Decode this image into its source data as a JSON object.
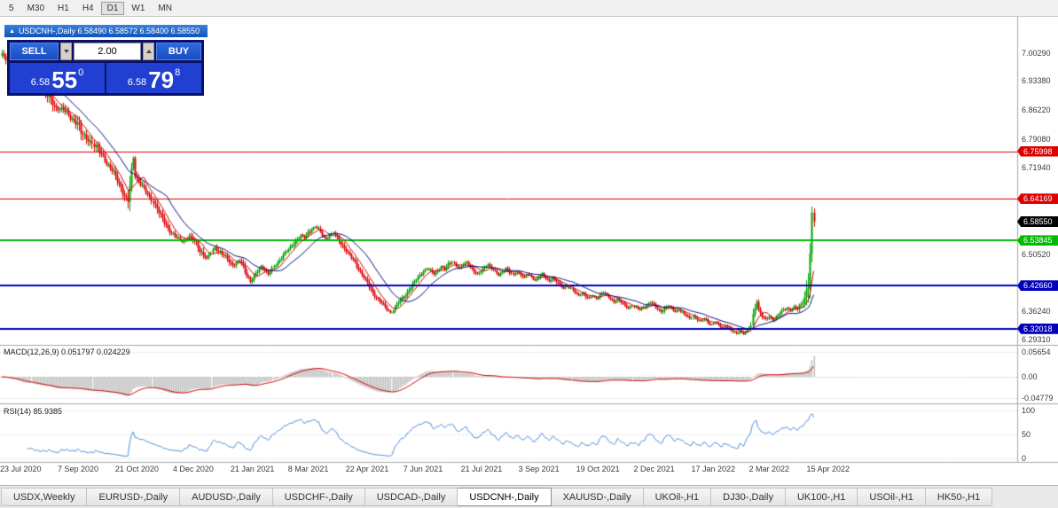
{
  "toolbar": {
    "timeframes": [
      {
        "label": "5",
        "active": false
      },
      {
        "label": "M30",
        "active": false
      },
      {
        "label": "H1",
        "active": false
      },
      {
        "label": "H4",
        "active": false
      },
      {
        "label": "D1",
        "active": true
      },
      {
        "label": "W1",
        "active": false
      },
      {
        "label": "MN",
        "active": false
      }
    ]
  },
  "chart_header": {
    "collapse_icon": "▲",
    "title": "USDCNH-,Daily 6.58490 6.58572 6.58400 6.58550"
  },
  "trade_panel": {
    "sell_label": "SELL",
    "buy_label": "BUY",
    "volume": "2.00",
    "sell_price": {
      "small": "6.58",
      "big": "55",
      "sup": "0"
    },
    "buy_price": {
      "small": "6.58",
      "big": "79",
      "sup": "8"
    }
  },
  "price_axis": {
    "scale_labels": [
      {
        "text": "7.00290",
        "value": 7.0029
      },
      {
        "text": "6.93380",
        "value": 6.9338
      },
      {
        "text": "6.86220",
        "value": 6.8622
      },
      {
        "text": "6.79080",
        "value": 6.7908
      },
      {
        "text": "6.71940",
        "value": 6.7194
      },
      {
        "text": "6.50520",
        "value": 6.5052
      },
      {
        "text": "6.36240",
        "value": 6.3624
      },
      {
        "text": "6.29310",
        "value": 6.2931
      }
    ],
    "markers": [
      {
        "text": "6.75998",
        "value": 6.75998,
        "color": "#dd0000",
        "line": true,
        "line_width": 1
      },
      {
        "text": "6.64169",
        "value": 6.64169,
        "color": "#dd0000",
        "line": true,
        "line_width": 1
      },
      {
        "text": "6.58550",
        "value": 6.5855,
        "color": "#000000",
        "line": false,
        "line_width": 0
      },
      {
        "text": "6.53845",
        "value": 6.53845,
        "color": "#00bb00",
        "line": true,
        "line_width": 2
      },
      {
        "text": "6.42660",
        "value": 6.4266,
        "color": "#0000bb",
        "line": true,
        "line_width": 2
      },
      {
        "text": "6.32018",
        "value": 6.32018,
        "color": "#0000bb",
        "line": true,
        "line_width": 2
      }
    ]
  },
  "macd_panel": {
    "label": "MACD(12,26,9) 0.051797 0.024229",
    "ticks": [
      {
        "text": "0.05654",
        "value": 0.05654
      },
      {
        "text": "0.00",
        "value": 0
      },
      {
        "text": "-0.04779",
        "value": -0.04779
      }
    ]
  },
  "rsi_panel": {
    "label": "RSI(14) 85.9385",
    "ticks": [
      {
        "text": "100",
        "value": 100
      },
      {
        "text": "50",
        "value": 50
      },
      {
        "text": "0",
        "value": 0
      }
    ]
  },
  "tabs": [
    {
      "label": "USDX,Weekly",
      "active": false
    },
    {
      "label": "EURUSD-,Daily",
      "active": false
    },
    {
      "label": "AUDUSD-,Daily",
      "active": false
    },
    {
      "label": "USDCHF-,Daily",
      "active": false
    },
    {
      "label": "USDCAD-,Daily",
      "active": false
    },
    {
      "label": "USDCNH-,Daily",
      "active": true
    },
    {
      "label": "XAUUSD-,Daily",
      "active": false
    },
    {
      "label": "UKOil-,H1",
      "active": false
    },
    {
      "label": "DJ30-,Daily",
      "active": false
    },
    {
      "label": "UK100-,H1",
      "active": false
    },
    {
      "label": "USOil-,H1",
      "active": false
    },
    {
      "label": "HK50-,H1",
      "active": false
    }
  ],
  "chart_data": {
    "type": "candlestick",
    "symbol": "USDCNH-",
    "timeframe": "Daily",
    "title": "USDCNH-,Daily",
    "current_ohlc": {
      "open": 6.5849,
      "high": 6.58572,
      "low": 6.584,
      "close": 6.5855
    },
    "bid": 6.5855,
    "ask": 6.58798,
    "bar_count": 452,
    "bars_per_label": 32,
    "last_close": 6.5855,
    "ylim": [
      6.2822,
      7.0732
    ],
    "macd_ylim": [
      -0.0606,
      0.0707
    ],
    "rsi_ylim": [
      -5.6,
      113
    ],
    "up_color": "#00a300",
    "down_color": "#de0000",
    "ma_fast": {
      "period": 8,
      "color": "#cc0000"
    },
    "ma_slow": {
      "period": 21,
      "color": "#00107a"
    },
    "macd": {
      "fast": 12,
      "slow": 26,
      "signal_period": 9,
      "histogram_color": "#c4c4c4",
      "signal_color": "#d40000",
      "value": 0.051797,
      "signal_value": 0.024229
    },
    "rsi": {
      "period": 14,
      "color": "#4a90d9",
      "value": 85.9385
    },
    "x_labels": [
      "23 Jul 2020",
      "7 Sep 2020",
      "21 Oct 2020",
      "4 Dec 2020",
      "21 Jan 2021",
      "8 Mar 2021",
      "22 Apr 2021",
      "7 Jun 2021",
      "21 Jul 2021",
      "3 Sep 2021",
      "19 Oct 2021",
      "2 Dec 2021",
      "17 Jan 2022",
      "2 Mar 2022",
      "15 Apr 2022"
    ],
    "price_path_anchors": [
      [
        0,
        6.997
      ],
      [
        4,
        6.985
      ],
      [
        8,
        6.968
      ],
      [
        12,
        6.945
      ],
      [
        14,
        6.952
      ],
      [
        18,
        6.928
      ],
      [
        22,
        6.915
      ],
      [
        26,
        6.892
      ],
      [
        30,
        6.868
      ],
      [
        34,
        6.862
      ],
      [
        38,
        6.845
      ],
      [
        42,
        6.828
      ],
      [
        44,
        6.805
      ],
      [
        48,
        6.79
      ],
      [
        52,
        6.768
      ],
      [
        56,
        6.748
      ],
      [
        58,
        6.73
      ],
      [
        62,
        6.705
      ],
      [
        64,
        6.69
      ],
      [
        66,
        6.672
      ],
      [
        68,
        6.648
      ],
      [
        70,
        6.635
      ],
      [
        72,
        6.71
      ],
      [
        73,
        6.745
      ],
      [
        74,
        6.7
      ],
      [
        76,
        6.685
      ],
      [
        80,
        6.66
      ],
      [
        84,
        6.635
      ],
      [
        86,
        6.618
      ],
      [
        88,
        6.6
      ],
      [
        90,
        6.585
      ],
      [
        92,
        6.57
      ],
      [
        94,
        6.558
      ],
      [
        96,
        6.548
      ],
      [
        100,
        6.537
      ],
      [
        104,
        6.549
      ],
      [
        108,
        6.532
      ],
      [
        110,
        6.515
      ],
      [
        112,
        6.503
      ],
      [
        114,
        6.492
      ],
      [
        116,
        6.51
      ],
      [
        118,
        6.522
      ],
      [
        120,
        6.512
      ],
      [
        124,
        6.498
      ],
      [
        128,
        6.478
      ],
      [
        132,
        6.488
      ],
      [
        134,
        6.472
      ],
      [
        136,
        6.455
      ],
      [
        138,
        6.437
      ],
      [
        140,
        6.448
      ],
      [
        142,
        6.462
      ],
      [
        144,
        6.475
      ],
      [
        146,
        6.468
      ],
      [
        148,
        6.455
      ],
      [
        150,
        6.468
      ],
      [
        152,
        6.48
      ],
      [
        154,
        6.49
      ],
      [
        156,
        6.503
      ],
      [
        158,
        6.512
      ],
      [
        160,
        6.522
      ],
      [
        162,
        6.532
      ],
      [
        164,
        6.543
      ],
      [
        166,
        6.552
      ],
      [
        168,
        6.545
      ],
      [
        170,
        6.558
      ],
      [
        172,
        6.568
      ],
      [
        174,
        6.573
      ],
      [
        176,
        6.565
      ],
      [
        178,
        6.552
      ],
      [
        180,
        6.543
      ],
      [
        182,
        6.552
      ],
      [
        184,
        6.558
      ],
      [
        186,
        6.545
      ],
      [
        188,
        6.532
      ],
      [
        190,
        6.52
      ],
      [
        192,
        6.508
      ],
      [
        194,
        6.495
      ],
      [
        196,
        6.482
      ],
      [
        198,
        6.468
      ],
      [
        200,
        6.455
      ],
      [
        202,
        6.44
      ],
      [
        204,
        6.425
      ],
      [
        206,
        6.41
      ],
      [
        208,
        6.398
      ],
      [
        210,
        6.388
      ],
      [
        212,
        6.378
      ],
      [
        214,
        6.368
      ],
      [
        216,
        6.36
      ],
      [
        218,
        6.372
      ],
      [
        220,
        6.385
      ],
      [
        222,
        6.395
      ],
      [
        224,
        6.405
      ],
      [
        226,
        6.418
      ],
      [
        228,
        6.43
      ],
      [
        230,
        6.442
      ],
      [
        232,
        6.452
      ],
      [
        234,
        6.462
      ],
      [
        236,
        6.47
      ],
      [
        238,
        6.463
      ],
      [
        240,
        6.455
      ],
      [
        242,
        6.465
      ],
      [
        244,
        6.475
      ],
      [
        246,
        6.468
      ],
      [
        248,
        6.478
      ],
      [
        250,
        6.487
      ],
      [
        252,
        6.478
      ],
      [
        254,
        6.468
      ],
      [
        256,
        6.478
      ],
      [
        258,
        6.485
      ],
      [
        260,
        6.475
      ],
      [
        262,
        6.463
      ],
      [
        264,
        6.455
      ],
      [
        266,
        6.463
      ],
      [
        268,
        6.472
      ],
      [
        270,
        6.48
      ],
      [
        272,
        6.47
      ],
      [
        274,
        6.46
      ],
      [
        276,
        6.452
      ],
      [
        278,
        6.462
      ],
      [
        280,
        6.47
      ],
      [
        282,
        6.46
      ],
      [
        284,
        6.452
      ],
      [
        286,
        6.462
      ],
      [
        288,
        6.455
      ],
      [
        290,
        6.446
      ],
      [
        292,
        6.455
      ],
      [
        294,
        6.448
      ],
      [
        296,
        6.44
      ],
      [
        298,
        6.448
      ],
      [
        300,
        6.455
      ],
      [
        302,
        6.446
      ],
      [
        304,
        6.438
      ],
      [
        306,
        6.446
      ],
      [
        308,
        6.438
      ],
      [
        310,
        6.428
      ],
      [
        312,
        6.42
      ],
      [
        314,
        6.428
      ],
      [
        316,
        6.418
      ],
      [
        318,
        6.41
      ],
      [
        320,
        6.402
      ],
      [
        322,
        6.41
      ],
      [
        324,
        6.402
      ],
      [
        326,
        6.395
      ],
      [
        328,
        6.402
      ],
      [
        330,
        6.395
      ],
      [
        332,
        6.403
      ],
      [
        334,
        6.41
      ],
      [
        336,
        6.402
      ],
      [
        338,
        6.394
      ],
      [
        340,
        6.387
      ],
      [
        342,
        6.394
      ],
      [
        344,
        6.386
      ],
      [
        346,
        6.378
      ],
      [
        348,
        6.372
      ],
      [
        350,
        6.378
      ],
      [
        352,
        6.372
      ],
      [
        354,
        6.366
      ],
      [
        356,
        6.373
      ],
      [
        358,
        6.38
      ],
      [
        360,
        6.386
      ],
      [
        362,
        6.378
      ],
      [
        364,
        6.37
      ],
      [
        366,
        6.363
      ],
      [
        368,
        6.37
      ],
      [
        370,
        6.377
      ],
      [
        372,
        6.37
      ],
      [
        374,
        6.362
      ],
      [
        376,
        6.368
      ],
      [
        378,
        6.36
      ],
      [
        380,
        6.353
      ],
      [
        382,
        6.346
      ],
      [
        384,
        6.352
      ],
      [
        386,
        6.345
      ],
      [
        388,
        6.338
      ],
      [
        390,
        6.344
      ],
      [
        392,
        6.336
      ],
      [
        394,
        6.33
      ],
      [
        396,
        6.336
      ],
      [
        398,
        6.328
      ],
      [
        400,
        6.322
      ],
      [
        402,
        6.328
      ],
      [
        404,
        6.32
      ],
      [
        406,
        6.314
      ],
      [
        408,
        6.308
      ],
      [
        410,
        6.315
      ],
      [
        412,
        6.308
      ],
      [
        414,
        6.315
      ],
      [
        416,
        6.328
      ],
      [
        418,
        6.372
      ],
      [
        419,
        6.39
      ],
      [
        420,
        6.368
      ],
      [
        422,
        6.352
      ],
      [
        424,
        6.342
      ],
      [
        426,
        6.35
      ],
      [
        428,
        6.342
      ],
      [
        430,
        6.35
      ],
      [
        432,
        6.358
      ],
      [
        434,
        6.365
      ],
      [
        436,
        6.372
      ],
      [
        438,
        6.366
      ],
      [
        440,
        6.374
      ],
      [
        442,
        6.368
      ],
      [
        444,
        6.382
      ],
      [
        446,
        6.398
      ],
      [
        448,
        6.44
      ],
      [
        449,
        6.5
      ],
      [
        450,
        6.592
      ],
      [
        451,
        6.5855
      ]
    ]
  }
}
